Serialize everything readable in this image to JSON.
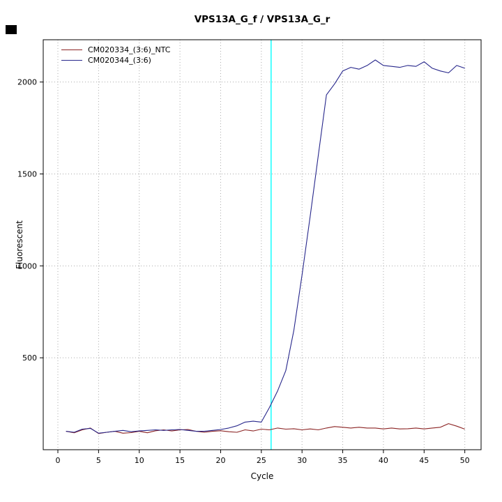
{
  "chart_data": {
    "type": "line",
    "title": "VPS13A_G_f / VPS13A_G_r",
    "xlabel": "Cycle",
    "ylabel": "Fluorescent",
    "xlim": [
      -1.8,
      52
    ],
    "ylim": [
      0,
      2230
    ],
    "x_ticks": [
      0,
      5,
      10,
      15,
      20,
      25,
      30,
      35,
      40,
      45,
      50
    ],
    "y_ticks": [
      500,
      1000,
      1500,
      2000
    ],
    "grid": true,
    "grid_color": "#aaaaaa",
    "threshold_line": {
      "x": 26.2,
      "color": "#00ffff"
    },
    "legend_position": "top-left",
    "x": [
      1,
      2,
      3,
      4,
      5,
      6,
      7,
      8,
      9,
      10,
      11,
      12,
      13,
      14,
      15,
      16,
      17,
      18,
      19,
      20,
      21,
      22,
      23,
      24,
      25,
      26,
      27,
      28,
      29,
      30,
      31,
      32,
      33,
      34,
      35,
      36,
      37,
      38,
      39,
      40,
      41,
      42,
      43,
      44,
      45,
      46,
      47,
      48,
      49,
      50
    ],
    "series": [
      {
        "name": "CM020334_(3:6)_NTC",
        "color": "#8b2323",
        "values": [
          100,
          92,
          108,
          118,
          88,
          95,
          100,
          90,
          93,
          100,
          92,
          103,
          108,
          102,
          108,
          110,
          100,
          95,
          100,
          103,
          98,
          95,
          108,
          102,
          112,
          108,
          118,
          112,
          114,
          108,
          113,
          108,
          118,
          126,
          122,
          118,
          122,
          118,
          118,
          113,
          118,
          113,
          114,
          118,
          113,
          118,
          122,
          142,
          128,
          112
        ]
      },
      {
        "name": "CM020344_(3:6)",
        "color": "#26268b",
        "values": [
          100,
          95,
          112,
          116,
          90,
          95,
          100,
          105,
          98,
          102,
          105,
          108,
          105,
          108,
          110,
          105,
          100,
          100,
          105,
          110,
          118,
          130,
          150,
          155,
          150,
          230,
          320,
          430,
          650,
          950,
          1270,
          1600,
          1930,
          1990,
          2060,
          2080,
          2070,
          2090,
          2120,
          2090,
          2085,
          2080,
          2090,
          2085,
          2110,
          2075,
          2060,
          2050,
          2090,
          2075
        ]
      }
    ]
  }
}
